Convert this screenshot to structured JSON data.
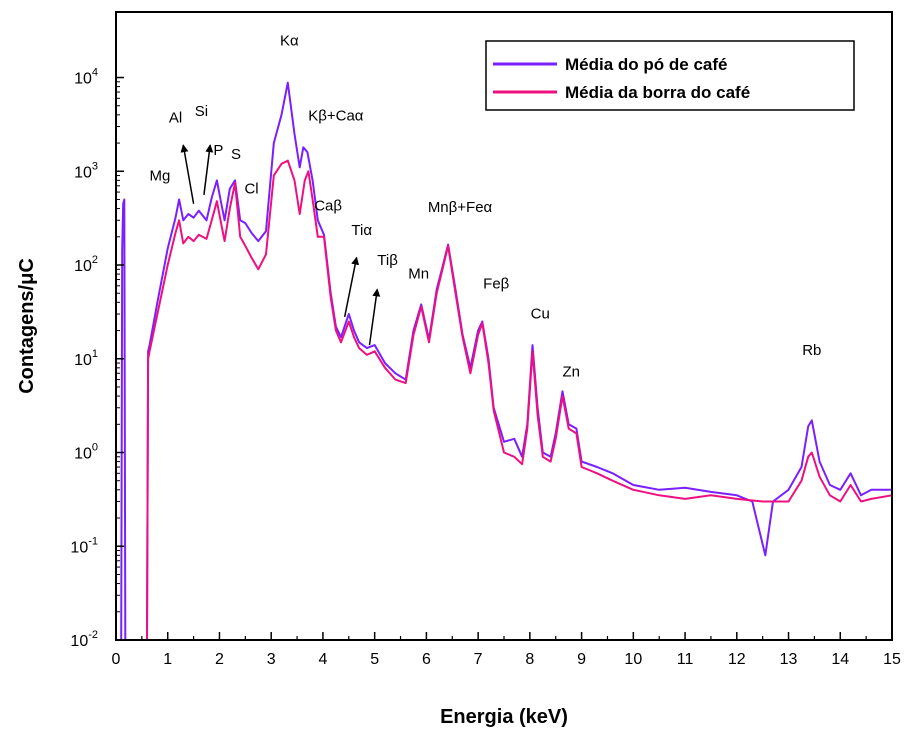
{
  "chart_data": {
    "type": "line",
    "title": "",
    "xlabel": "Energia (keV)",
    "ylabel": "Contagens/μC",
    "xlim": [
      0,
      15
    ],
    "ylim": [
      0.01,
      50000
    ],
    "yscale": "log",
    "grid": false,
    "legend_position": "top-right",
    "x_ticks": [
      "0",
      "1",
      "2",
      "3",
      "4",
      "5",
      "6",
      "7",
      "8",
      "9",
      "10",
      "11",
      "12",
      "13",
      "14",
      "15"
    ],
    "y_ticks": [
      {
        "value": 0.01,
        "base": "10",
        "exp": "-2"
      },
      {
        "value": 0.1,
        "base": "10",
        "exp": "-1"
      },
      {
        "value": 1,
        "base": "10",
        "exp": "0"
      },
      {
        "value": 10,
        "base": "10",
        "exp": "1"
      },
      {
        "value": 100,
        "base": "10",
        "exp": "2"
      },
      {
        "value": 1000,
        "base": "10",
        "exp": "3"
      },
      {
        "value": 10000,
        "base": "10",
        "exp": "4"
      }
    ],
    "series": [
      {
        "name": "Média do pó de café",
        "color": "#7a1fff",
        "x": [
          0.1,
          0.12,
          0.14,
          0.16,
          0.18,
          0.2,
          0.6,
          0.6,
          0.62,
          0.65,
          0.8,
          1.0,
          1.15,
          1.22,
          1.3,
          1.4,
          1.5,
          1.6,
          1.75,
          1.85,
          1.95,
          2.02,
          2.1,
          2.2,
          2.3,
          2.4,
          2.5,
          2.62,
          2.75,
          2.9,
          3.05,
          3.2,
          3.32,
          3.45,
          3.55,
          3.62,
          3.7,
          3.8,
          3.9,
          4.02,
          4.15,
          4.25,
          4.35,
          4.5,
          4.6,
          4.7,
          4.85,
          5.0,
          5.2,
          5.4,
          5.6,
          5.75,
          5.9,
          6.05,
          6.2,
          6.3,
          6.42,
          6.55,
          6.7,
          6.85,
          7.0,
          7.08,
          7.2,
          7.3,
          7.5,
          7.7,
          7.85,
          7.95,
          8.05,
          8.15,
          8.25,
          8.4,
          8.5,
          8.63,
          8.75,
          8.9,
          9.0,
          9.3,
          9.6,
          10.0,
          10.5,
          11.0,
          11.5,
          12.0,
          12.3,
          12.55,
          12.7,
          13.0,
          13.25,
          13.38,
          13.45,
          13.6,
          13.8,
          14.0,
          14.2,
          14.4,
          14.6,
          15.0
        ],
        "y": [
          0.01,
          150,
          450,
          500,
          0.01,
          0.01,
          0.01,
          0.01,
          12,
          14,
          40,
          150,
          320,
          500,
          300,
          350,
          320,
          380,
          300,
          520,
          800,
          500,
          300,
          650,
          800,
          300,
          280,
          220,
          180,
          230,
          2000,
          4000,
          8800,
          2500,
          1100,
          1800,
          1600,
          800,
          300,
          210,
          50,
          22,
          17,
          30,
          20,
          15,
          13,
          14,
          9,
          7,
          6,
          20,
          38,
          16,
          55,
          90,
          165,
          60,
          18,
          8,
          20,
          25,
          10,
          3,
          1.3,
          1.4,
          0.9,
          2,
          14,
          3,
          1,
          0.9,
          1.6,
          4.5,
          2,
          1.8,
          0.8,
          0.7,
          0.6,
          0.45,
          0.4,
          0.42,
          0.38,
          0.35,
          0.3,
          0.08,
          0.3,
          0.4,
          0.7,
          1.9,
          2.2,
          0.8,
          0.45,
          0.4,
          0.6,
          0.35,
          0.4,
          0.4
        ]
      },
      {
        "name": "Média da borra do café",
        "color": "#ee1080",
        "x": [
          0.1,
          0.12,
          0.14,
          0.16,
          0.2,
          0.6,
          0.6,
          0.62,
          0.65,
          0.8,
          1.0,
          1.15,
          1.22,
          1.3,
          1.4,
          1.5,
          1.6,
          1.75,
          1.85,
          1.95,
          2.02,
          2.1,
          2.2,
          2.3,
          2.4,
          2.5,
          2.62,
          2.75,
          2.9,
          3.05,
          3.2,
          3.32,
          3.45,
          3.55,
          3.65,
          3.72,
          3.8,
          3.9,
          4.02,
          4.15,
          4.25,
          4.35,
          4.5,
          4.6,
          4.7,
          4.85,
          5.0,
          5.2,
          5.4,
          5.6,
          5.75,
          5.9,
          6.05,
          6.2,
          6.3,
          6.42,
          6.55,
          6.7,
          6.85,
          7.0,
          7.08,
          7.2,
          7.3,
          7.5,
          7.7,
          7.85,
          7.95,
          8.05,
          8.15,
          8.25,
          8.4,
          8.5,
          8.63,
          8.75,
          8.9,
          9.0,
          9.3,
          9.6,
          10.0,
          10.5,
          11.0,
          11.5,
          12.0,
          12.5,
          13.0,
          13.25,
          13.38,
          13.45,
          13.6,
          13.8,
          14.0,
          14.2,
          14.4,
          14.6,
          15.0
        ],
        "y": [
          0.01,
          0.01,
          0.01,
          0.01,
          0.01,
          0.01,
          0.01,
          10,
          12,
          30,
          100,
          220,
          300,
          170,
          200,
          180,
          210,
          190,
          300,
          480,
          300,
          180,
          400,
          750,
          200,
          160,
          120,
          90,
          130,
          900,
          1200,
          1300,
          800,
          350,
          800,
          1000,
          500,
          200,
          200,
          45,
          20,
          15,
          25,
          17,
          13,
          11,
          12,
          8,
          6,
          5.5,
          18,
          36,
          15,
          50,
          85,
          160,
          55,
          17,
          7,
          18,
          24,
          9,
          2.8,
          1,
          0.9,
          0.75,
          1.8,
          12,
          2.5,
          0.9,
          0.8,
          1.4,
          4,
          1.8,
          1.6,
          0.7,
          0.6,
          0.5,
          0.4,
          0.35,
          0.32,
          0.35,
          0.32,
          0.3,
          0.3,
          0.5,
          0.9,
          1,
          0.55,
          0.35,
          0.3,
          0.45,
          0.3,
          0.32,
          0.35
        ]
      }
    ],
    "peak_labels": [
      {
        "text": "Mg",
        "x": 0.85,
        "y": 800
      },
      {
        "text": "Al",
        "x": 1.15,
        "y": 3300
      },
      {
        "text": "Si",
        "x": 1.65,
        "y": 3900
      },
      {
        "text": "P",
        "x": 1.98,
        "y": 1500
      },
      {
        "text": "S",
        "x": 2.32,
        "y": 1350
      },
      {
        "text": "Cl",
        "x": 2.62,
        "y": 580
      },
      {
        "text": "Kα",
        "x": 3.35,
        "y": 22000
      },
      {
        "text": "Kβ+Caα",
        "x": 4.25,
        "y": 3500
      },
      {
        "text": "Caβ",
        "x": 4.1,
        "y": 380
      },
      {
        "text": "Tiα",
        "x": 4.75,
        "y": 210
      },
      {
        "text": "Tiβ",
        "x": 5.25,
        "y": 100
      },
      {
        "text": "Mn",
        "x": 5.85,
        "y": 72
      },
      {
        "text": "Mnβ+Feα",
        "x": 6.65,
        "y": 370
      },
      {
        "text": "Feβ",
        "x": 7.35,
        "y": 56
      },
      {
        "text": "Cu",
        "x": 8.2,
        "y": 27
      },
      {
        "text": "Zn",
        "x": 8.8,
        "y": 6.5
      },
      {
        "text": "Rb",
        "x": 13.45,
        "y": 11
      }
    ],
    "arrows": [
      {
        "name": "al-arrow",
        "from": [
          1.5,
          450
        ],
        "to": [
          1.3,
          1900
        ]
      },
      {
        "name": "si-arrow",
        "from": [
          1.7,
          560
        ],
        "to": [
          1.82,
          1900
        ]
      },
      {
        "name": "ti-alpha-arrow",
        "from": [
          4.42,
          28
        ],
        "to": [
          4.65,
          120
        ]
      },
      {
        "name": "ti-beta-arrow",
        "from": [
          4.9,
          14
        ],
        "to": [
          5.05,
          55
        ]
      }
    ]
  }
}
